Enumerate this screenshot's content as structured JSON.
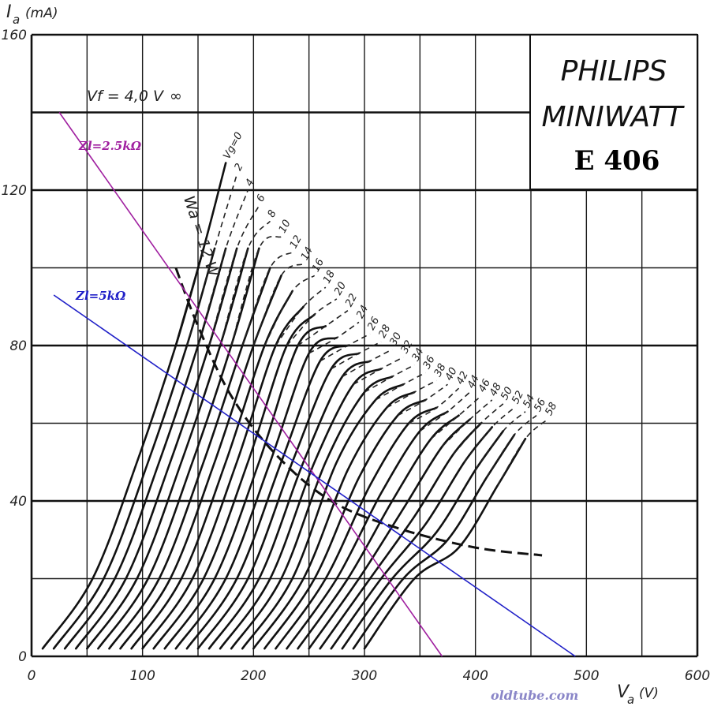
{
  "chart_data": {
    "type": "line",
    "title": "E 406",
    "brand": "PHILIPS",
    "brand_line2": "MINIWATT",
    "filament_note": "Vf = 4,0 V",
    "watermark": "oldtube.com",
    "ylabel_main": "I",
    "ylabel_sub": "a",
    "ylabel_unit": "(mA)",
    "xlabel_main": "V",
    "xlabel_sub": "a",
    "xlabel_unit": "(V)",
    "xlim": [
      0,
      600
    ],
    "ylim": [
      0,
      160
    ],
    "x_ticks": [
      0,
      100,
      200,
      300,
      400,
      500,
      600
    ],
    "y_ticks": [
      0,
      40,
      80,
      120,
      160
    ],
    "x_tick_labels": [
      "0",
      "100",
      "200",
      "300",
      "400",
      "500",
      "600"
    ],
    "y_tick_labels": [
      "0",
      "40",
      "80",
      "120",
      "160"
    ],
    "grid": true,
    "series": [
      {
        "name": "Vg=0",
        "x": [
          10,
          55,
          95,
          130,
          155,
          175
        ],
        "y": [
          2,
          20,
          50,
          80,
          105,
          127
        ]
      },
      {
        "name": "2",
        "x": [
          20,
          65,
          105,
          140,
          165,
          185
        ],
        "y": [
          2,
          20,
          50,
          80,
          105,
          124
        ]
      },
      {
        "name": "4",
        "x": [
          30,
          75,
          115,
          150,
          175,
          195
        ],
        "y": [
          2,
          20,
          50,
          80,
          105,
          120
        ]
      },
      {
        "name": "6",
        "x": [
          40,
          85,
          125,
          160,
          185,
          205
        ],
        "y": [
          2,
          20,
          50,
          80,
          105,
          116
        ]
      },
      {
        "name": "8",
        "x": [
          50,
          95,
          135,
          170,
          195,
          215
        ],
        "y": [
          2,
          20,
          50,
          80,
          105,
          112
        ]
      },
      {
        "name": "10",
        "x": [
          60,
          105,
          145,
          180,
          205,
          225
        ],
        "y": [
          2,
          20,
          50,
          80,
          105,
          108
        ]
      },
      {
        "name": "12",
        "x": [
          70,
          115,
          155,
          190,
          215,
          235
        ],
        "y": [
          2,
          20,
          50,
          80,
          100,
          104
        ]
      },
      {
        "name": "14",
        "x": [
          80,
          125,
          165,
          200,
          225,
          245
        ],
        "y": [
          2,
          20,
          50,
          80,
          98,
          101
        ]
      },
      {
        "name": "16",
        "x": [
          90,
          135,
          175,
          210,
          235,
          255
        ],
        "y": [
          2,
          20,
          50,
          80,
          94,
          98
        ]
      },
      {
        "name": "18",
        "x": [
          100,
          145,
          185,
          220,
          245,
          265
        ],
        "y": [
          2,
          20,
          50,
          80,
          90,
          95
        ]
      },
      {
        "name": "20",
        "x": [
          110,
          155,
          195,
          230,
          255,
          275
        ],
        "y": [
          2,
          20,
          50,
          80,
          88,
          92
        ]
      },
      {
        "name": "22",
        "x": [
          120,
          165,
          205,
          240,
          265,
          285
        ],
        "y": [
          2,
          20,
          50,
          80,
          85,
          89
        ]
      },
      {
        "name": "24",
        "x": [
          130,
          175,
          215,
          250,
          275,
          295
        ],
        "y": [
          2,
          20,
          50,
          78,
          82,
          86
        ]
      },
      {
        "name": "26",
        "x": [
          140,
          185,
          225,
          260,
          285,
          305
        ],
        "y": [
          2,
          20,
          50,
          76,
          80,
          83
        ]
      },
      {
        "name": "28",
        "x": [
          150,
          195,
          235,
          270,
          295,
          315
        ],
        "y": [
          2,
          20,
          50,
          74,
          78,
          81
        ]
      },
      {
        "name": "30",
        "x": [
          160,
          205,
          245,
          280,
          305,
          325
        ],
        "y": [
          2,
          20,
          50,
          72,
          76,
          79
        ]
      },
      {
        "name": "32",
        "x": [
          170,
          215,
          255,
          290,
          315,
          335
        ],
        "y": [
          2,
          20,
          50,
          70,
          74,
          77
        ]
      },
      {
        "name": "34",
        "x": [
          180,
          225,
          265,
          300,
          325,
          345
        ],
        "y": [
          2,
          20,
          50,
          68,
          72,
          75
        ]
      },
      {
        "name": "36",
        "x": [
          190,
          235,
          275,
          310,
          335,
          355
        ],
        "y": [
          2,
          20,
          50,
          66,
          70,
          73
        ]
      },
      {
        "name": "38",
        "x": [
          200,
          245,
          285,
          320,
          345,
          365
        ],
        "y": [
          2,
          20,
          48,
          64,
          68,
          71
        ]
      },
      {
        "name": "40",
        "x": [
          210,
          255,
          295,
          330,
          355,
          375
        ],
        "y": [
          2,
          20,
          46,
          62,
          66,
          70
        ]
      },
      {
        "name": "42",
        "x": [
          220,
          265,
          305,
          340,
          365,
          385
        ],
        "y": [
          2,
          20,
          44,
          60,
          64,
          69
        ]
      },
      {
        "name": "44",
        "x": [
          230,
          275,
          315,
          350,
          375,
          395
        ],
        "y": [
          2,
          20,
          42,
          58,
          63,
          68
        ]
      },
      {
        "name": "46",
        "x": [
          240,
          285,
          325,
          360,
          385,
          405
        ],
        "y": [
          2,
          20,
          40,
          56,
          62,
          67
        ]
      },
      {
        "name": "48",
        "x": [
          250,
          295,
          335,
          370,
          395,
          415
        ],
        "y": [
          2,
          20,
          38,
          54,
          61,
          66
        ]
      },
      {
        "name": "50",
        "x": [
          260,
          305,
          345,
          380,
          405,
          425
        ],
        "y": [
          2,
          20,
          36,
          52,
          60,
          65
        ]
      },
      {
        "name": "52",
        "x": [
          270,
          315,
          355,
          390,
          415,
          435
        ],
        "y": [
          2,
          20,
          34,
          50,
          59,
          64
        ]
      },
      {
        "name": "54",
        "x": [
          280,
          325,
          365,
          400,
          425,
          445
        ],
        "y": [
          2,
          20,
          32,
          48,
          58,
          63
        ]
      },
      {
        "name": "56",
        "x": [
          290,
          335,
          375,
          410,
          435,
          455
        ],
        "y": [
          2,
          20,
          30,
          46,
          57,
          62
        ]
      },
      {
        "name": "58",
        "x": [
          300,
          345,
          385,
          420,
          445,
          465
        ],
        "y": [
          2,
          20,
          28,
          44,
          56,
          61
        ]
      }
    ],
    "max_dissipation": {
      "name": "Wa = 12 W",
      "x": [
        130,
        150,
        180,
        220,
        270,
        330,
        400,
        460
      ],
      "y": [
        100,
        85,
        67,
        52,
        40,
        33,
        28,
        26
      ]
    },
    "load_lines": [
      {
        "name": "Zl=2.5kΩ",
        "color": "#a020a0",
        "x": [
          25,
          370
        ],
        "y": [
          140,
          0
        ]
      },
      {
        "name": "Zl=5kΩ",
        "color": "#2020c8",
        "x": [
          20,
          490
        ],
        "y": [
          93,
          0
        ]
      }
    ]
  }
}
